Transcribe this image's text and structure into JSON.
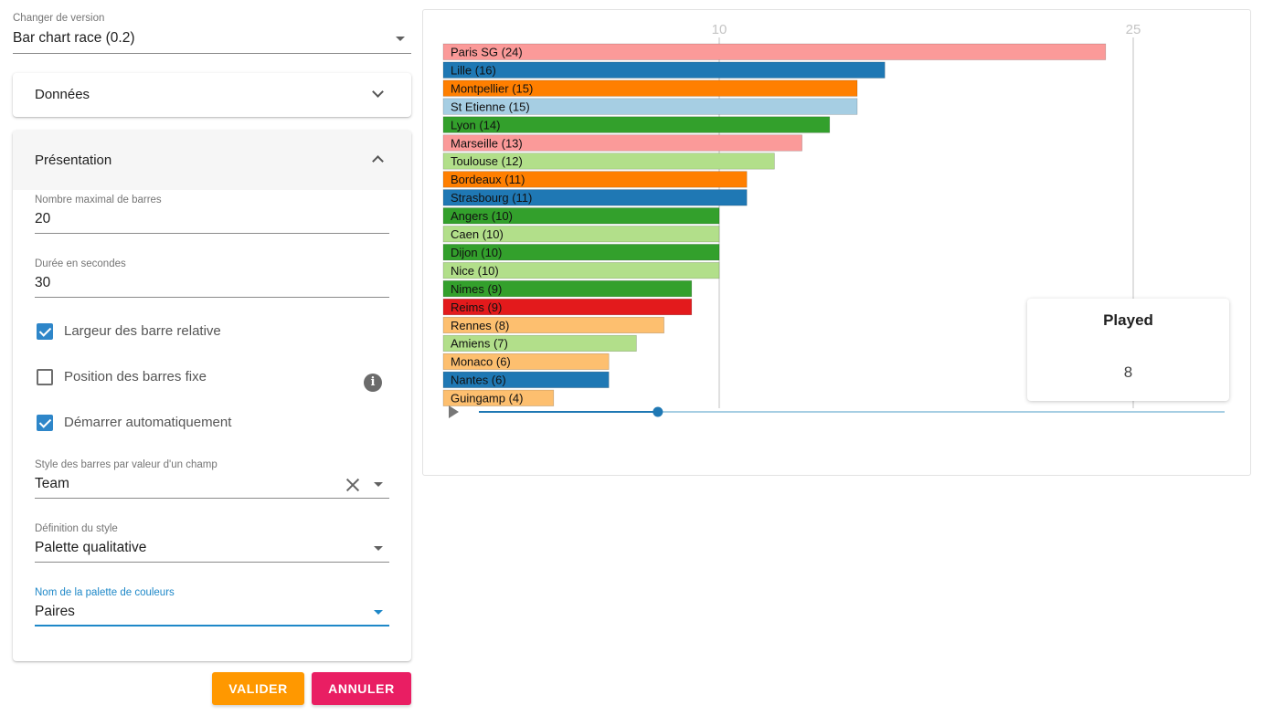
{
  "version": {
    "label": "Changer de version",
    "value": "Bar chart race (0.2)"
  },
  "sections": {
    "data": {
      "title": "Données"
    },
    "presentation": {
      "title": "Présentation"
    }
  },
  "form": {
    "max_bars": {
      "label": "Nombre maximal de barres",
      "value": "20"
    },
    "duration": {
      "label": "Durée en secondes",
      "value": "30"
    },
    "relative_width": {
      "label": "Largeur des barre relative",
      "checked": true
    },
    "fixed_position": {
      "label": "Position des barres fixe",
      "checked": false
    },
    "autostart": {
      "label": "Démarrer automatiquement",
      "checked": true
    },
    "bar_style_field": {
      "label": "Style des barres par valeur d'un champ",
      "value": "Team"
    },
    "style_definition": {
      "label": "Définition du style",
      "value": "Palette qualitative"
    },
    "palette_name": {
      "label": "Nom de la palette de couleurs",
      "value": "Paires"
    }
  },
  "buttons": {
    "validate": "VALIDER",
    "cancel": "ANNULER"
  },
  "info_icon": {
    "glyph": "i"
  },
  "colors": {
    "accent_blue": "#1e88c8",
    "checkbox_blue": "#2e86c9",
    "validate_orange": "#ff9800",
    "cancel_pink": "#e91e63",
    "slider_blue": "#1f78b4",
    "slider_track": "#a6cee3"
  },
  "played": {
    "title": "Played",
    "value": "8"
  },
  "player": {
    "play_icon": "play-icon",
    "progress": 0.24
  },
  "chart_data": {
    "type": "bar",
    "orientation": "horizontal",
    "xticks": [
      10,
      25
    ],
    "grid": true,
    "bars": [
      {
        "label": "Paris SG",
        "value": 24,
        "display": "Paris SG (24)",
        "color": "#fb9a99"
      },
      {
        "label": "Lille",
        "value": 16,
        "display": "Lille  (16)",
        "color": "#1f78b4"
      },
      {
        "label": "Montpellier",
        "value": 15,
        "display": "Montpellier  (15)",
        "color": "#ff7f00"
      },
      {
        "label": "St Etienne",
        "value": 15,
        "display": "St Etienne (15)",
        "color": "#a6cee3"
      },
      {
        "label": "Lyon",
        "value": 14,
        "display": "Lyon  (14)",
        "color": "#33a02c"
      },
      {
        "label": "Marseille",
        "value": 13,
        "display": "Marseille  (13)",
        "color": "#fb9a99"
      },
      {
        "label": "Toulouse",
        "value": 12,
        "display": "Toulouse (12)",
        "color": "#b2df8a"
      },
      {
        "label": "Bordeaux",
        "value": 11,
        "display": "Bordeaux  (11)",
        "color": "#ff7f00"
      },
      {
        "label": "Strasbourg",
        "value": 11,
        "display": "Strasbourg (11)",
        "color": "#1f78b4"
      },
      {
        "label": "Angers",
        "value": 10,
        "display": "Angers (10)",
        "color": "#33a02c"
      },
      {
        "label": "Caen",
        "value": 10,
        "display": "Caen (10)",
        "color": "#b2df8a"
      },
      {
        "label": "Dijon",
        "value": 10,
        "display": "Dijon  (10)",
        "color": "#33a02c"
      },
      {
        "label": "Nice",
        "value": 10,
        "display": "Nice (10)",
        "color": "#b2df8a"
      },
      {
        "label": "Nimes",
        "value": 9,
        "display": "Nimes (9)",
        "color": "#33a02c"
      },
      {
        "label": "Reims",
        "value": 9,
        "display": "Reims (9)",
        "color": "#e31a1c"
      },
      {
        "label": "Rennes",
        "value": 8,
        "display": "Rennes (8)",
        "color": "#fdbf6f"
      },
      {
        "label": "Amiens",
        "value": 7,
        "display": "Amiens  (7)",
        "color": "#b2df8a"
      },
      {
        "label": "Monaco",
        "value": 6,
        "display": "Monaco  (6)",
        "color": "#fdbf6f"
      },
      {
        "label": "Nantes",
        "value": 6,
        "display": "Nantes (6)",
        "color": "#1f78b4"
      },
      {
        "label": "Guingamp",
        "value": 4,
        "display": "Guingamp (4)",
        "color": "#fdbf6f"
      }
    ]
  }
}
